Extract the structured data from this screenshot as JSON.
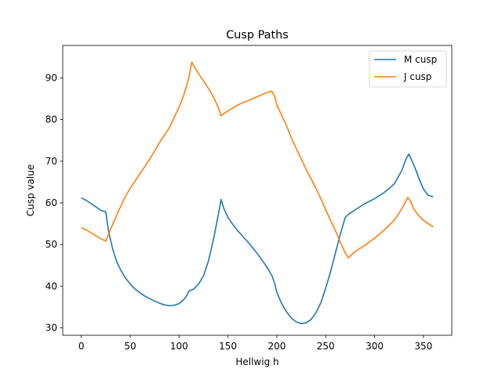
{
  "chart_data": {
    "type": "line",
    "title": "Cusp Paths",
    "xlabel": "Hellwig h",
    "ylabel": "Cusp value",
    "xlim": [
      -19,
      379
    ],
    "ylim": [
      28.2,
      97.8
    ],
    "xticks": [
      0,
      50,
      100,
      150,
      200,
      250,
      300,
      350
    ],
    "yticks": [
      30,
      40,
      50,
      60,
      70,
      80,
      90
    ],
    "grid": false,
    "legend_position": "upper right",
    "series": [
      {
        "name": "M cusp",
        "color": "#1f77b4",
        "points": [
          [
            0,
            61.2
          ],
          [
            5,
            60.6
          ],
          [
            10,
            59.8
          ],
          [
            15,
            59.0
          ],
          [
            20,
            58.2
          ],
          [
            25,
            57.8
          ],
          [
            28,
            53.0
          ],
          [
            32,
            49.0
          ],
          [
            36,
            46.0
          ],
          [
            40,
            44.0
          ],
          [
            45,
            42.0
          ],
          [
            50,
            40.5
          ],
          [
            55,
            39.3
          ],
          [
            60,
            38.4
          ],
          [
            65,
            37.6
          ],
          [
            70,
            37.0
          ],
          [
            75,
            36.4
          ],
          [
            80,
            35.9
          ],
          [
            85,
            35.5
          ],
          [
            90,
            35.3
          ],
          [
            95,
            35.4
          ],
          [
            100,
            35.8
          ],
          [
            105,
            36.8
          ],
          [
            108,
            37.8
          ],
          [
            110,
            38.8
          ],
          [
            115,
            39.3
          ],
          [
            120,
            40.5
          ],
          [
            125,
            42.5
          ],
          [
            130,
            46.0
          ],
          [
            135,
            51.0
          ],
          [
            140,
            57.0
          ],
          [
            143,
            60.8
          ],
          [
            146,
            58.5
          ],
          [
            150,
            56.5
          ],
          [
            155,
            54.8
          ],
          [
            160,
            53.3
          ],
          [
            165,
            52.0
          ],
          [
            170,
            50.7
          ],
          [
            175,
            49.3
          ],
          [
            180,
            47.8
          ],
          [
            185,
            46.2
          ],
          [
            190,
            44.5
          ],
          [
            195,
            42.5
          ],
          [
            198,
            40.5
          ],
          [
            200,
            38.5
          ],
          [
            205,
            35.8
          ],
          [
            210,
            33.8
          ],
          [
            215,
            32.3
          ],
          [
            220,
            31.4
          ],
          [
            225,
            31.0
          ],
          [
            230,
            31.2
          ],
          [
            235,
            32.0
          ],
          [
            240,
            33.6
          ],
          [
            245,
            36.0
          ],
          [
            250,
            39.5
          ],
          [
            255,
            43.5
          ],
          [
            260,
            48.0
          ],
          [
            265,
            52.5
          ],
          [
            270,
            56.5
          ],
          [
            273,
            57.2
          ],
          [
            280,
            58.3
          ],
          [
            290,
            59.8
          ],
          [
            300,
            61.0
          ],
          [
            310,
            62.5
          ],
          [
            320,
            64.5
          ],
          [
            328,
            67.8
          ],
          [
            332,
            70.5
          ],
          [
            335,
            71.7
          ],
          [
            338,
            70.2
          ],
          [
            342,
            68.0
          ],
          [
            346,
            65.5
          ],
          [
            350,
            63.3
          ],
          [
            355,
            61.8
          ],
          [
            360,
            61.5
          ]
        ]
      },
      {
        "name": "J cusp",
        "color": "#ff7f0e",
        "points": [
          [
            0,
            54.0
          ],
          [
            5,
            53.5
          ],
          [
            10,
            52.8
          ],
          [
            15,
            52.1
          ],
          [
            20,
            51.4
          ],
          [
            25,
            50.8
          ],
          [
            28,
            52.5
          ],
          [
            32,
            54.8
          ],
          [
            36,
            57.0
          ],
          [
            40,
            59.0
          ],
          [
            45,
            61.5
          ],
          [
            50,
            63.5
          ],
          [
            60,
            67.0
          ],
          [
            70,
            70.5
          ],
          [
            75,
            72.5
          ],
          [
            80,
            74.5
          ],
          [
            90,
            78.0
          ],
          [
            100,
            83.0
          ],
          [
            105,
            86.0
          ],
          [
            110,
            90.0
          ],
          [
            113,
            93.8
          ],
          [
            116,
            92.5
          ],
          [
            120,
            91.0
          ],
          [
            125,
            89.3
          ],
          [
            130,
            87.5
          ],
          [
            135,
            85.5
          ],
          [
            140,
            83.0
          ],
          [
            143,
            80.9
          ],
          [
            148,
            81.8
          ],
          [
            155,
            82.8
          ],
          [
            160,
            83.5
          ],
          [
            170,
            84.5
          ],
          [
            180,
            85.5
          ],
          [
            190,
            86.5
          ],
          [
            195,
            86.8
          ],
          [
            198,
            85.5
          ],
          [
            200,
            83.5
          ],
          [
            205,
            81.0
          ],
          [
            210,
            78.5
          ],
          [
            215,
            75.5
          ],
          [
            220,
            73.0
          ],
          [
            225,
            70.5
          ],
          [
            230,
            68.0
          ],
          [
            235,
            65.8
          ],
          [
            240,
            63.5
          ],
          [
            245,
            61.0
          ],
          [
            250,
            58.3
          ],
          [
            255,
            55.8
          ],
          [
            260,
            53.3
          ],
          [
            265,
            50.5
          ],
          [
            270,
            48.0
          ],
          [
            273,
            46.8
          ],
          [
            280,
            48.3
          ],
          [
            290,
            49.8
          ],
          [
            300,
            51.5
          ],
          [
            310,
            53.5
          ],
          [
            320,
            55.8
          ],
          [
            325,
            57.5
          ],
          [
            330,
            59.5
          ],
          [
            334,
            61.3
          ],
          [
            337,
            60.3
          ],
          [
            340,
            58.5
          ],
          [
            345,
            57.0
          ],
          [
            350,
            55.8
          ],
          [
            355,
            55.0
          ],
          [
            360,
            54.2
          ]
        ]
      }
    ]
  }
}
